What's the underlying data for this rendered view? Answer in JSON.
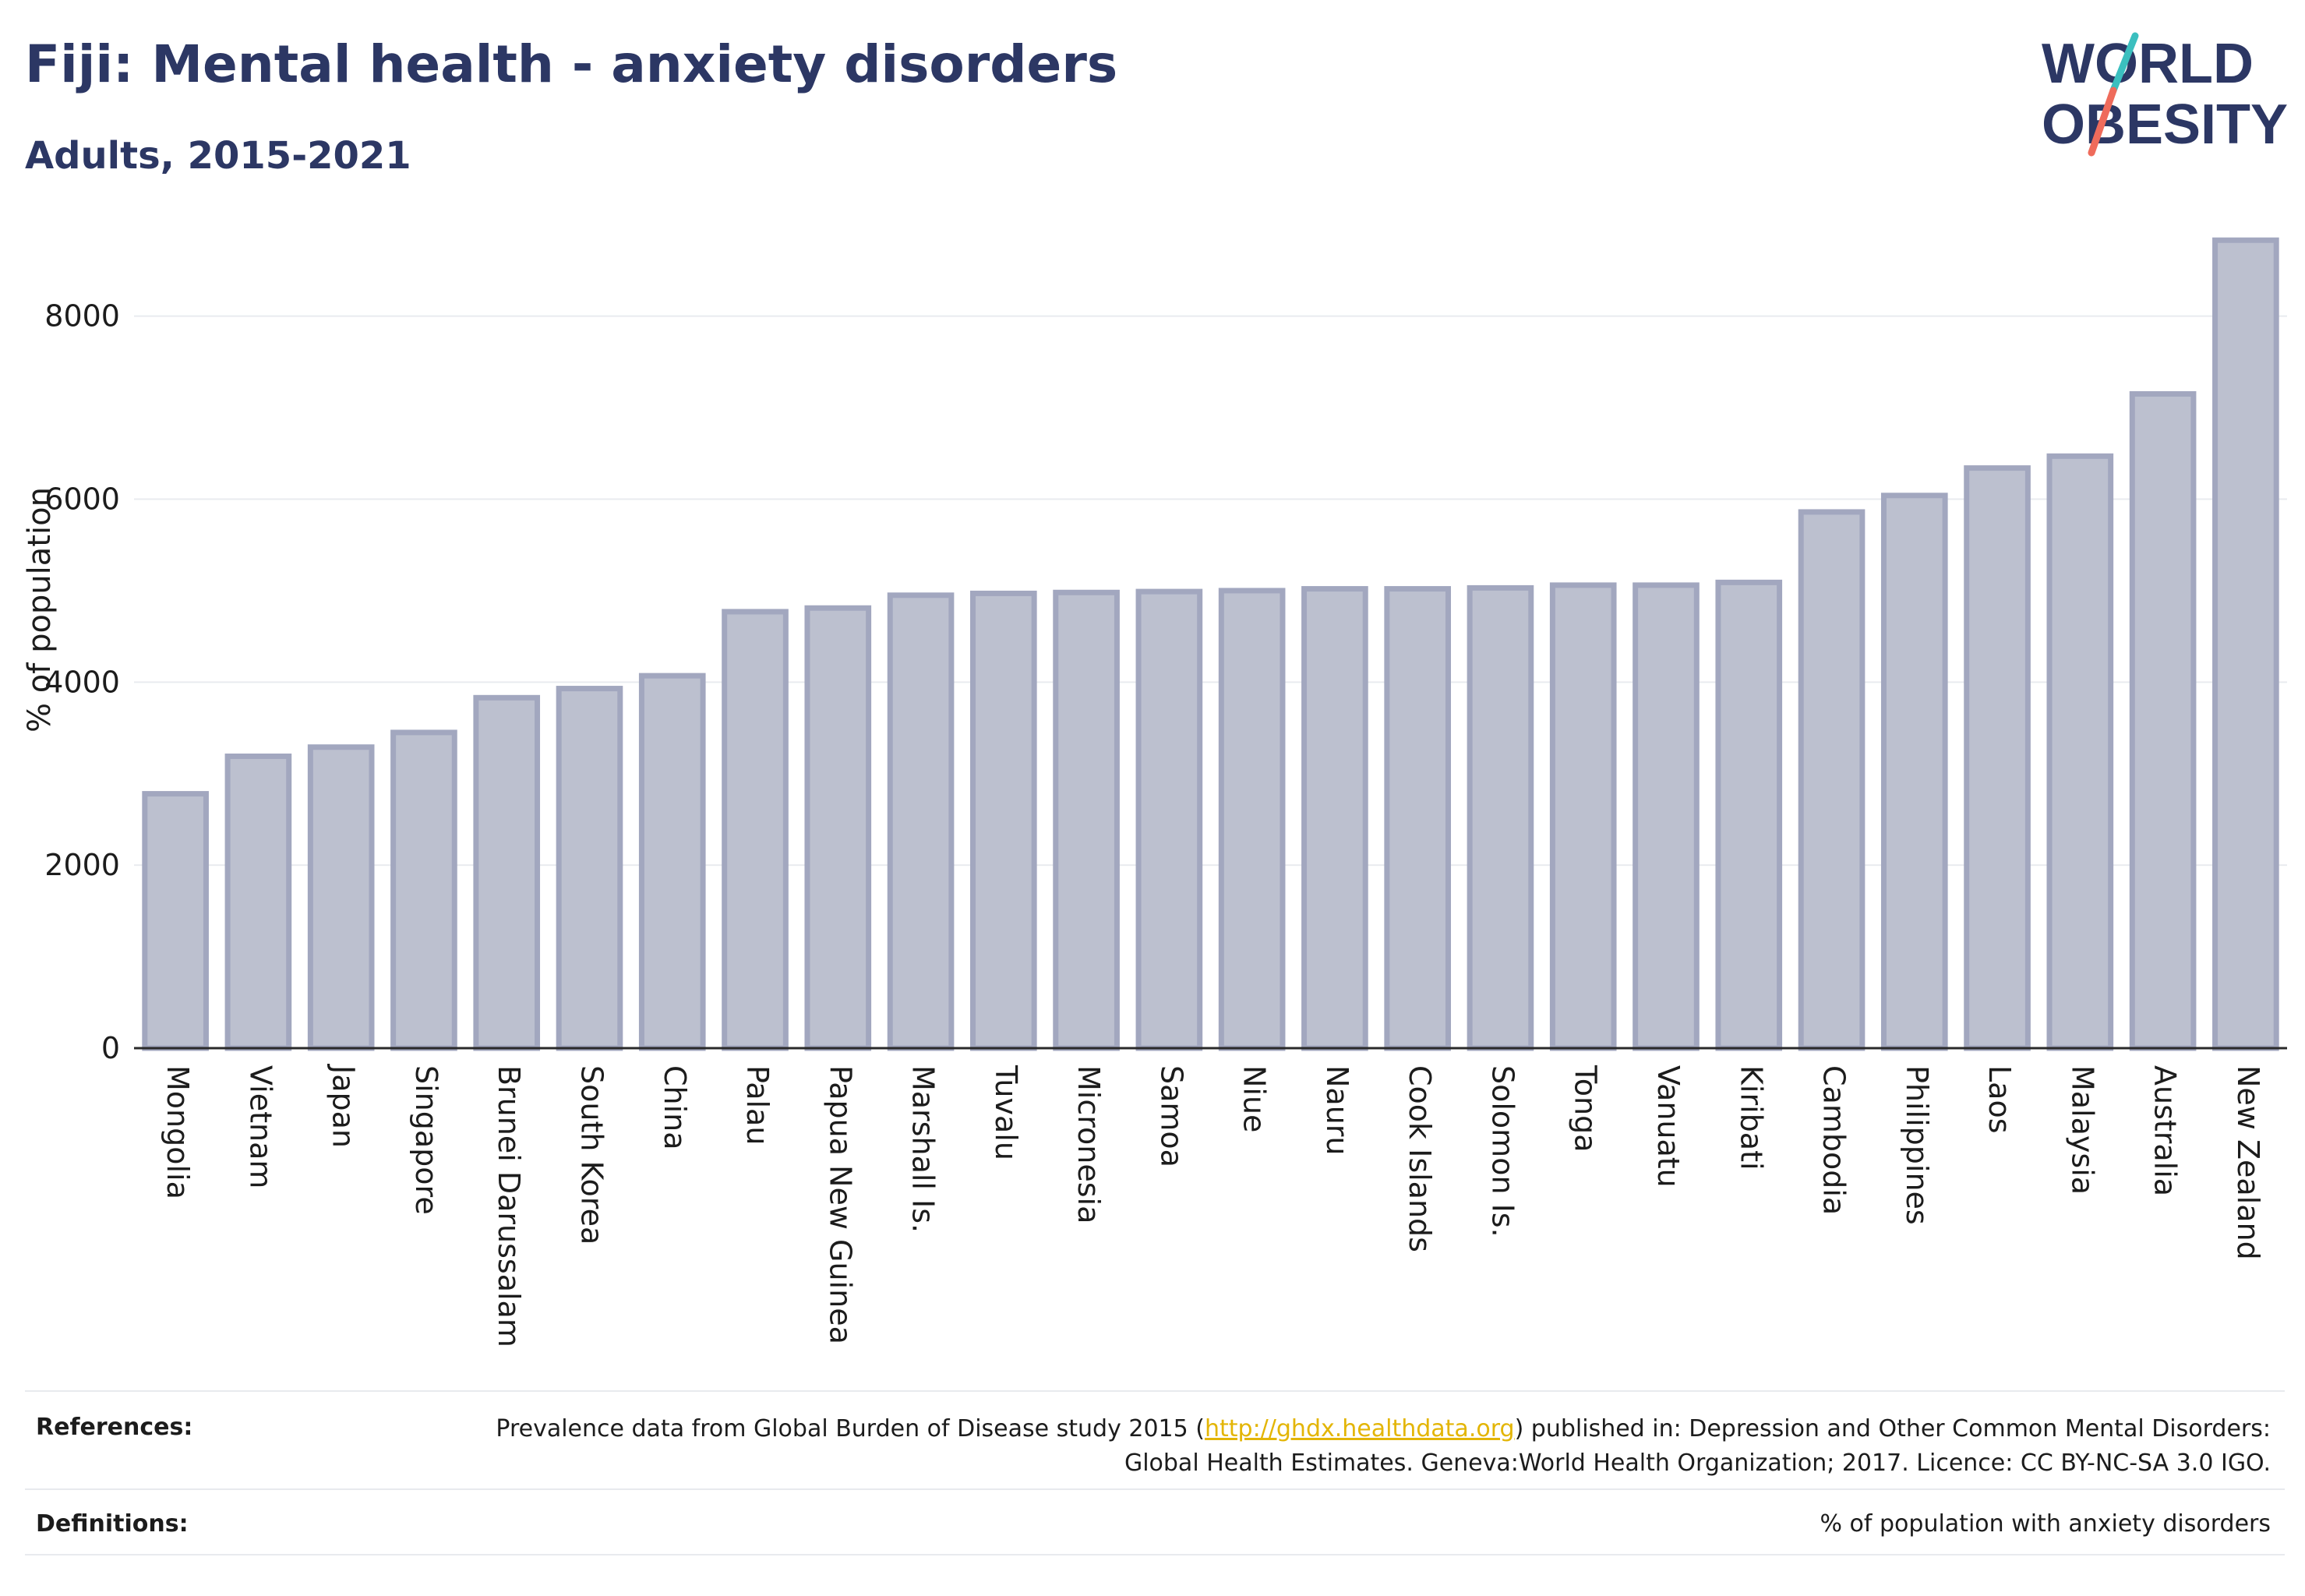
{
  "header": {
    "title": "Fiji: Mental health - anxiety disorders",
    "subtitle": "Adults, 2015-2021"
  },
  "logo": {
    "line1": "WORLD",
    "line2": "OBESITY",
    "icon": "world-obesity-logo"
  },
  "colors": {
    "bar_fill": "#bcc0cf",
    "bar_stroke": "#a2a7bf",
    "title": "#2c3764",
    "link": "#e3b505",
    "logo_accent_teal": "#3bbfbf",
    "logo_accent_coral": "#ef6b5b"
  },
  "chart_data": {
    "type": "bar",
    "title": "Fiji: Mental health - anxiety disorders",
    "subtitle": "Adults, 2015-2021",
    "ylabel": "% of population",
    "xlabel": "",
    "ylim": [
      0,
      8900
    ],
    "yticks": [
      0,
      2000,
      4000,
      6000,
      8000
    ],
    "grid": true,
    "categories": [
      "Mongolia",
      "Vietnam",
      "Japan",
      "Singapore",
      "Brunei Darussalam",
      "South Korea",
      "China",
      "Palau",
      "Papua New Guinea",
      "Marshall Is.",
      "Tuvalu",
      "Micronesia",
      "Samoa",
      "Niue",
      "Nauru",
      "Cook Islands",
      "Solomon Is.",
      "Tonga",
      "Vanuatu",
      "Kiribati",
      "Cambodia",
      "Philippines",
      "Laos",
      "Malaysia",
      "Australia",
      "New Zealand"
    ],
    "values": [
      2780,
      3190,
      3290,
      3450,
      3830,
      3930,
      4070,
      4770,
      4810,
      4950,
      4970,
      4980,
      4990,
      5000,
      5020,
      5020,
      5030,
      5060,
      5060,
      5090,
      5860,
      6040,
      6340,
      6470,
      7150,
      8830
    ]
  },
  "footer": {
    "references_label": "References:",
    "references_text_before": "Prevalence data from Global Burden of Disease study 2015 (",
    "references_link": "http://ghdx.healthdata.org",
    "references_text_after": ") published in: Depression and Other Common Mental Disorders: Global Health Estimates. Geneva:World Health Organization; 2017. Licence: CC BY-NC-SA 3.0 IGO.",
    "definitions_label": "Definitions:",
    "definitions_text": "% of population with anxiety disorders"
  }
}
